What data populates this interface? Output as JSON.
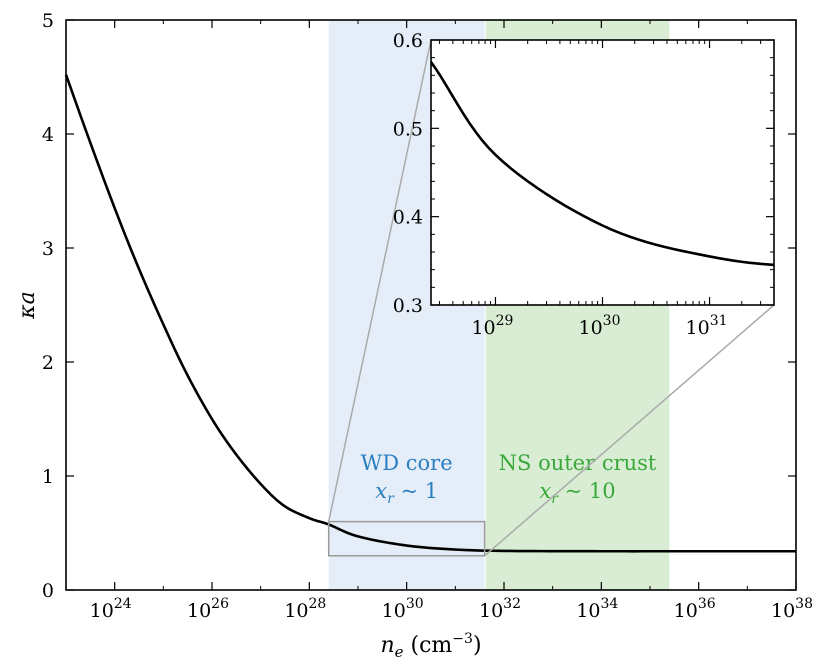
{
  "chart_data": {
    "type": "line",
    "xlabel": "n_e (cm^-3)",
    "ylabel": "κa",
    "x_scale": "log",
    "xlim": [
      1e+23,
      1e+38
    ],
    "ylim": [
      0,
      5
    ],
    "x_ticks": [
      1e+24,
      1e+26,
      1e+28,
      1e+30,
      1e+32,
      1e+34,
      1e+36,
      1e+38
    ],
    "x_tick_labels": [
      "10",
      "10",
      "10",
      "10",
      "10",
      "10",
      "10",
      "10"
    ],
    "x_tick_exponents": [
      "24",
      "26",
      "28",
      "30",
      "32",
      "34",
      "36",
      "38"
    ],
    "y_ticks": [
      0,
      1,
      2,
      3,
      4,
      5
    ],
    "y_tick_labels": [
      "0",
      "1",
      "2",
      "3",
      "4",
      "5"
    ],
    "series": [
      {
        "color": "#000000",
        "x": [
          1e+23,
          3e+23,
          1e+24,
          3e+24,
          1e+25,
          3e+25,
          1e+26,
          3e+26,
          1e+27,
          3e+27,
          1e+28,
          2.5e+28,
          1e+29,
          1e+30,
          1e+31,
          1e+32,
          1e+34,
          1e+36,
          1e+38
        ],
        "y": [
          4.52,
          3.95,
          3.35,
          2.84,
          2.33,
          1.9,
          1.5,
          1.2,
          0.93,
          0.74,
          0.63,
          0.575,
          0.47,
          0.39,
          0.355,
          0.343,
          0.34,
          0.34,
          0.34
        ]
      }
    ],
    "regions": [
      {
        "label": "WD core",
        "sublabel": "x_r ~ 1",
        "x_range": [
          2.5e+28,
          4e+31
        ],
        "color": "#a8c8e8",
        "text_color": "#2a7fc1"
      },
      {
        "label": "NS outer crust",
        "sublabel": "x_r ~ 10",
        "x_range": [
          4.2e+31,
          2.5e+35
        ],
        "color": "#a8d8a0",
        "text_color": "#3aa83a"
      }
    ],
    "zoom_box": {
      "x_range": [
        2.5e+28,
        4e+31
      ],
      "y_range": [
        0.3,
        0.6
      ]
    },
    "inset": {
      "xlim": [
        2.5e+28,
        4e+31
      ],
      "ylim": [
        0.3,
        0.6
      ],
      "x_scale": "log",
      "x_ticks": [
        1e+29,
        1e+30,
        1e+31
      ],
      "x_tick_labels": [
        "10",
        "10",
        "10"
      ],
      "x_tick_exponents": [
        "29",
        "30",
        "31"
      ],
      "y_ticks": [
        0.3,
        0.4,
        0.5,
        0.6
      ],
      "y_tick_labels": [
        "0.3",
        "0.4",
        "0.5",
        "0.6"
      ]
    }
  }
}
